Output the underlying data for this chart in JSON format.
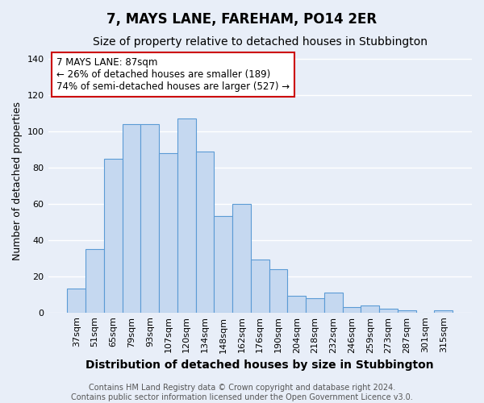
{
  "title": "7, MAYS LANE, FAREHAM, PO14 2ER",
  "subtitle": "Size of property relative to detached houses in Stubbington",
  "xlabel": "Distribution of detached houses by size in Stubbington",
  "ylabel": "Number of detached properties",
  "categories": [
    "37sqm",
    "51sqm",
    "65sqm",
    "79sqm",
    "93sqm",
    "107sqm",
    "120sqm",
    "134sqm",
    "148sqm",
    "162sqm",
    "176sqm",
    "190sqm",
    "204sqm",
    "218sqm",
    "232sqm",
    "246sqm",
    "259sqm",
    "273sqm",
    "287sqm",
    "301sqm",
    "315sqm"
  ],
  "values": [
    13,
    35,
    85,
    104,
    104,
    88,
    107,
    89,
    53,
    60,
    29,
    24,
    9,
    8,
    11,
    3,
    4,
    2,
    1,
    0,
    1
  ],
  "bar_color": "#c5d8f0",
  "bar_edge_color": "#5b9bd5",
  "background_color": "#e8eef8",
  "grid_color": "#ffffff",
  "vline_x": 3.5,
  "vline_color": "#8b0000",
  "annotation_text": "7 MAYS LANE: 87sqm\n← 26% of detached houses are smaller (189)\n74% of semi-detached houses are larger (527) →",
  "annotation_box_color": "#ffffff",
  "annotation_box_edge": "#cc0000",
  "footer": "Contains HM Land Registry data © Crown copyright and database right 2024.\nContains public sector information licensed under the Open Government Licence v3.0.",
  "ylim": [
    0,
    145
  ],
  "yticks": [
    0,
    20,
    40,
    60,
    80,
    100,
    120,
    140
  ],
  "title_fontsize": 12,
  "subtitle_fontsize": 10,
  "xlabel_fontsize": 10,
  "ylabel_fontsize": 9,
  "tick_fontsize": 8,
  "annotation_fontsize": 8.5,
  "footer_fontsize": 7
}
